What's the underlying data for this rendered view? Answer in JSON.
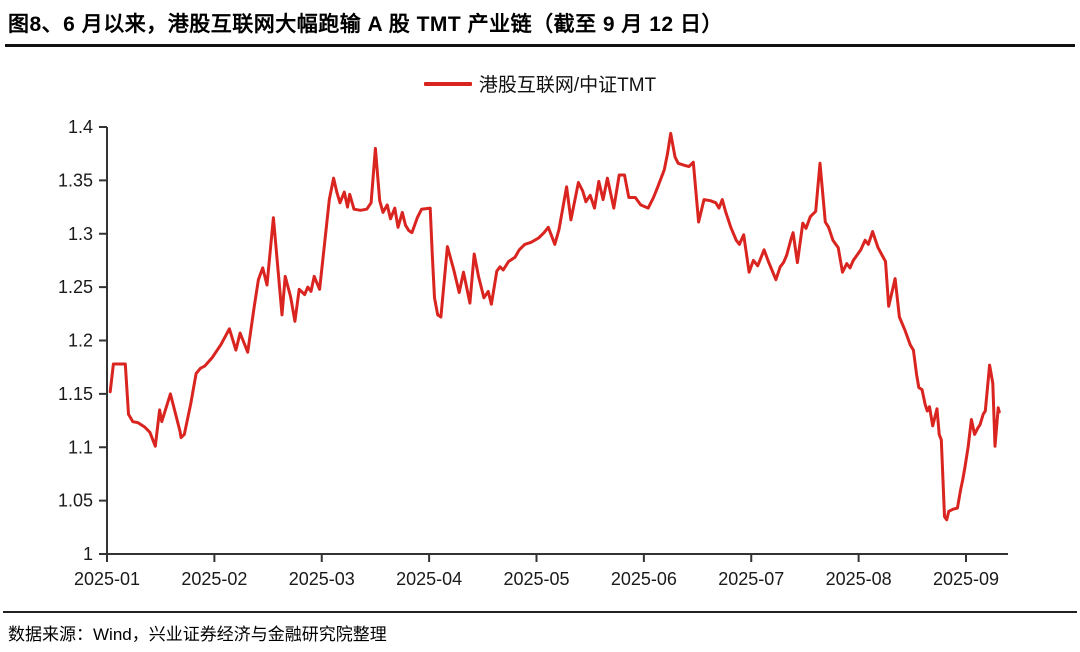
{
  "header": {
    "title": "图8、6 月以来，港股互联网大幅跑输 A 股 TMT 产业链（截至 9 月 12 日）"
  },
  "legend": {
    "label": "港股互联网/中证TMT",
    "line_color": "#d9241f"
  },
  "footer": {
    "source": "数据来源：Wind，兴业证券经济与金融研究院整理"
  },
  "chart_data": {
    "type": "line",
    "title": "港股互联网/中证TMT",
    "xlabel": "",
    "ylabel": "",
    "grid": false,
    "legend_position": "top-center",
    "axis_color": "#333333",
    "tick_label_color": "#1a1a1a",
    "ylim": [
      1.0,
      1.4
    ],
    "y_ticks": [
      1.0,
      1.05,
      1.1,
      1.15,
      1.2,
      1.25,
      1.3,
      1.35,
      1.4
    ],
    "y_tick_labels": [
      "1",
      "1.05",
      "1.1",
      "1.15",
      "1.2",
      "1.25",
      "1.3",
      "1.35",
      "1.4"
    ],
    "x_ticks": [
      "2025-01",
      "2025-02",
      "2025-03",
      "2025-04",
      "2025-05",
      "2025-06",
      "2025-07",
      "2025-08",
      "2025-09"
    ],
    "x_range": [
      1.0,
      9.39
    ],
    "series": [
      {
        "name": "港股互联网/中证TMT",
        "color": "#d9241f",
        "points": [
          [
            1.03,
            1.152
          ],
          [
            1.06,
            1.178
          ],
          [
            1.17,
            1.178
          ],
          [
            1.2,
            1.131
          ],
          [
            1.24,
            1.124
          ],
          [
            1.29,
            1.123
          ],
          [
            1.35,
            1.119
          ],
          [
            1.4,
            1.114
          ],
          [
            1.43,
            1.106
          ],
          [
            1.45,
            1.101
          ],
          [
            1.49,
            1.135
          ],
          [
            1.51,
            1.124
          ],
          [
            1.59,
            1.15
          ],
          [
            1.68,
            1.115
          ],
          [
            1.69,
            1.109
          ],
          [
            1.72,
            1.112
          ],
          [
            1.78,
            1.141
          ],
          [
            1.83,
            1.169
          ],
          [
            1.87,
            1.174
          ],
          [
            1.91,
            1.176
          ],
          [
            1.98,
            1.184
          ],
          [
            2.06,
            1.196
          ],
          [
            2.14,
            1.211
          ],
          [
            2.2,
            1.191
          ],
          [
            2.24,
            1.207
          ],
          [
            2.31,
            1.189
          ],
          [
            2.37,
            1.231
          ],
          [
            2.41,
            1.257
          ],
          [
            2.45,
            1.268
          ],
          [
            2.49,
            1.252
          ],
          [
            2.55,
            1.315
          ],
          [
            2.63,
            1.224
          ],
          [
            2.66,
            1.26
          ],
          [
            2.71,
            1.241
          ],
          [
            2.75,
            1.218
          ],
          [
            2.79,
            1.248
          ],
          [
            2.84,
            1.243
          ],
          [
            2.87,
            1.25
          ],
          [
            2.9,
            1.246
          ],
          [
            2.93,
            1.26
          ],
          [
            2.98,
            1.248
          ],
          [
            3.02,
            1.285
          ],
          [
            3.07,
            1.332
          ],
          [
            3.11,
            1.352
          ],
          [
            3.14,
            1.339
          ],
          [
            3.17,
            1.329
          ],
          [
            3.21,
            1.339
          ],
          [
            3.24,
            1.325
          ],
          [
            3.26,
            1.337
          ],
          [
            3.3,
            1.323
          ],
          [
            3.36,
            1.322
          ],
          [
            3.42,
            1.323
          ],
          [
            3.46,
            1.329
          ],
          [
            3.5,
            1.38
          ],
          [
            3.54,
            1.331
          ],
          [
            3.57,
            1.32
          ],
          [
            3.61,
            1.327
          ],
          [
            3.64,
            1.314
          ],
          [
            3.68,
            1.324
          ],
          [
            3.71,
            1.306
          ],
          [
            3.75,
            1.32
          ],
          [
            3.78,
            1.308
          ],
          [
            3.81,
            1.303
          ],
          [
            3.84,
            1.301
          ],
          [
            3.89,
            1.315
          ],
          [
            3.93,
            1.323
          ],
          [
            4.01,
            1.324
          ],
          [
            4.03,
            1.28
          ],
          [
            4.05,
            1.24
          ],
          [
            4.08,
            1.224
          ],
          [
            4.11,
            1.222
          ],
          [
            4.17,
            1.288
          ],
          [
            4.23,
            1.266
          ],
          [
            4.28,
            1.245
          ],
          [
            4.32,
            1.264
          ],
          [
            4.38,
            1.235
          ],
          [
            4.42,
            1.281
          ],
          [
            4.46,
            1.26
          ],
          [
            4.51,
            1.24
          ],
          [
            4.55,
            1.246
          ],
          [
            4.58,
            1.234
          ],
          [
            4.63,
            1.265
          ],
          [
            4.66,
            1.269
          ],
          [
            4.69,
            1.266
          ],
          [
            4.74,
            1.274
          ],
          [
            4.8,
            1.278
          ],
          [
            4.84,
            1.285
          ],
          [
            4.89,
            1.29
          ],
          [
            4.95,
            1.292
          ],
          [
            5.02,
            1.296
          ],
          [
            5.07,
            1.301
          ],
          [
            5.11,
            1.306
          ],
          [
            5.17,
            1.29
          ],
          [
            5.21,
            1.304
          ],
          [
            5.28,
            1.344
          ],
          [
            5.32,
            1.313
          ],
          [
            5.39,
            1.348
          ],
          [
            5.43,
            1.34
          ],
          [
            5.46,
            1.33
          ],
          [
            5.5,
            1.336
          ],
          [
            5.54,
            1.324
          ],
          [
            5.58,
            1.349
          ],
          [
            5.62,
            1.332
          ],
          [
            5.66,
            1.352
          ],
          [
            5.72,
            1.324
          ],
          [
            5.77,
            1.355
          ],
          [
            5.82,
            1.355
          ],
          [
            5.86,
            1.334
          ],
          [
            5.92,
            1.334
          ],
          [
            5.97,
            1.327
          ],
          [
            6.04,
            1.324
          ],
          [
            6.09,
            1.334
          ],
          [
            6.13,
            1.344
          ],
          [
            6.19,
            1.36
          ],
          [
            6.22,
            1.375
          ],
          [
            6.25,
            1.394
          ],
          [
            6.29,
            1.372
          ],
          [
            6.32,
            1.366
          ],
          [
            6.38,
            1.364
          ],
          [
            6.42,
            1.363
          ],
          [
            6.46,
            1.367
          ],
          [
            6.51,
            1.311
          ],
          [
            6.56,
            1.332
          ],
          [
            6.62,
            1.331
          ],
          [
            6.67,
            1.329
          ],
          [
            6.7,
            1.324
          ],
          [
            6.73,
            1.332
          ],
          [
            6.76,
            1.321
          ],
          [
            6.81,
            1.306
          ],
          [
            6.86,
            1.294
          ],
          [
            6.89,
            1.29
          ],
          [
            6.93,
            1.299
          ],
          [
            6.98,
            1.264
          ],
          [
            7.02,
            1.275
          ],
          [
            7.06,
            1.27
          ],
          [
            7.12,
            1.285
          ],
          [
            7.16,
            1.274
          ],
          [
            7.23,
            1.257
          ],
          [
            7.27,
            1.269
          ],
          [
            7.3,
            1.273
          ],
          [
            7.33,
            1.28
          ],
          [
            7.37,
            1.295
          ],
          [
            7.39,
            1.301
          ],
          [
            7.43,
            1.273
          ],
          [
            7.48,
            1.31
          ],
          [
            7.51,
            1.305
          ],
          [
            7.55,
            1.316
          ],
          [
            7.6,
            1.321
          ],
          [
            7.64,
            1.366
          ],
          [
            7.69,
            1.311
          ],
          [
            7.72,
            1.306
          ],
          [
            7.76,
            1.294
          ],
          [
            7.81,
            1.287
          ],
          [
            7.85,
            1.264
          ],
          [
            7.89,
            1.272
          ],
          [
            7.92,
            1.268
          ],
          [
            7.95,
            1.275
          ],
          [
            8.02,
            1.285
          ],
          [
            8.06,
            1.294
          ],
          [
            8.09,
            1.29
          ],
          [
            8.13,
            1.302
          ],
          [
            8.18,
            1.287
          ],
          [
            8.25,
            1.274
          ],
          [
            8.28,
            1.232
          ],
          [
            8.34,
            1.258
          ],
          [
            8.38,
            1.222
          ],
          [
            8.43,
            1.21
          ],
          [
            8.48,
            1.196
          ],
          [
            8.51,
            1.191
          ],
          [
            8.54,
            1.168
          ],
          [
            8.56,
            1.156
          ],
          [
            8.59,
            1.154
          ],
          [
            8.62,
            1.14
          ],
          [
            8.64,
            1.134
          ],
          [
            8.66,
            1.138
          ],
          [
            8.69,
            1.12
          ],
          [
            8.73,
            1.136
          ],
          [
            8.75,
            1.112
          ],
          [
            8.77,
            1.107
          ],
          [
            8.8,
            1.035
          ],
          [
            8.82,
            1.032
          ],
          [
            8.84,
            1.04
          ],
          [
            8.88,
            1.042
          ],
          [
            8.92,
            1.043
          ],
          [
            8.95,
            1.06
          ],
          [
            8.97,
            1.07
          ],
          [
            8.99,
            1.081
          ],
          [
            9.02,
            1.1
          ],
          [
            9.05,
            1.126
          ],
          [
            9.08,
            1.112
          ],
          [
            9.11,
            1.118
          ],
          [
            9.13,
            1.121
          ],
          [
            9.16,
            1.131
          ],
          [
            9.18,
            1.134
          ],
          [
            9.22,
            1.177
          ],
          [
            9.25,
            1.16
          ],
          [
            9.27,
            1.101
          ],
          [
            9.3,
            1.137
          ],
          [
            9.31,
            1.133
          ]
        ]
      }
    ]
  }
}
